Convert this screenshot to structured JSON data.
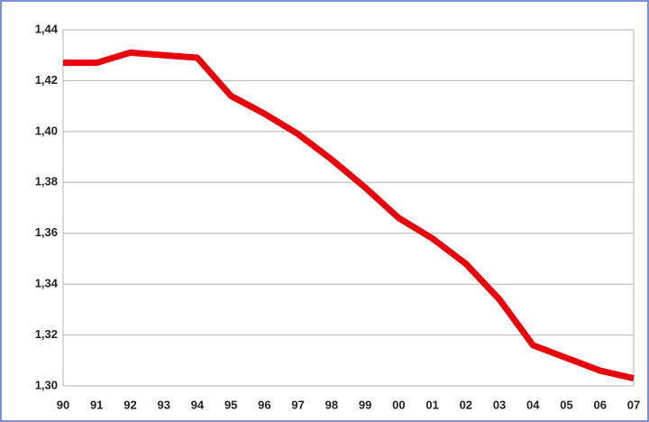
{
  "chart_data": {
    "type": "line",
    "categories": [
      "90",
      "91",
      "92",
      "93",
      "94",
      "95",
      "96",
      "97",
      "98",
      "99",
      "00",
      "01",
      "02",
      "03",
      "04",
      "05",
      "06",
      "07"
    ],
    "series": [
      {
        "color": "#e8000b",
        "values": [
          1.427,
          1.427,
          1.431,
          1.43,
          1.429,
          1.414,
          1.407,
          1.399,
          1.389,
          1.378,
          1.366,
          1.358,
          1.348,
          1.334,
          1.316,
          1.311,
          1.306,
          1.303
        ]
      }
    ],
    "ylim": [
      1.3,
      1.44
    ],
    "yticks": [
      {
        "value": 1.3,
        "label": "1,30"
      },
      {
        "value": 1.32,
        "label": "1,32"
      },
      {
        "value": 1.34,
        "label": "1,34"
      },
      {
        "value": 1.36,
        "label": "1,36"
      },
      {
        "value": 1.38,
        "label": "1,38"
      },
      {
        "value": 1.4,
        "label": "1,40"
      },
      {
        "value": 1.42,
        "label": "1,42"
      },
      {
        "value": 1.44,
        "label": "1,44"
      }
    ],
    "grid": true
  }
}
